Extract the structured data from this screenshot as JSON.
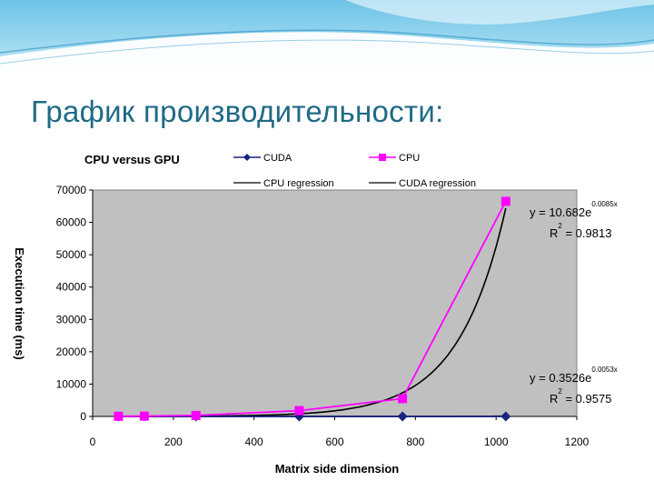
{
  "slide": {
    "title": "График производительности:"
  },
  "chart_data": {
    "type": "line",
    "title": "CPU versus GPU",
    "xlabel": "Matrix side dimension",
    "ylabel": "Execution time (ms)",
    "xlim": [
      0,
      1200
    ],
    "ylim": [
      0,
      70000
    ],
    "x_ticks": [
      "0",
      "200",
      "400",
      "600",
      "800",
      "1000",
      "1200"
    ],
    "y_ticks": [
      "0",
      "10000",
      "20000",
      "30000",
      "40000",
      "50000",
      "60000",
      "70000"
    ],
    "grid": false,
    "plot_background": "#c0c0c0",
    "series": [
      {
        "name": "CUDA",
        "color": "#1a237e",
        "marker": "diamond",
        "x": [
          64,
          128,
          256,
          512,
          768,
          1024
        ],
        "y": [
          0,
          0,
          0,
          0,
          0,
          0
        ]
      },
      {
        "name": "CPU",
        "color": "#ff00ff",
        "marker": "square",
        "x": [
          64,
          128,
          256,
          512,
          768,
          1024
        ],
        "y": [
          50,
          100,
          300,
          1800,
          5500,
          66500
        ]
      }
    ],
    "regression": [
      {
        "name": "CPU regression",
        "color": "#000000",
        "a": 10.682,
        "b": 0.0085
      },
      {
        "name": "CUDA regression",
        "color": "#000000",
        "a": 0.3526,
        "b": 0.0053
      }
    ],
    "annotations": [
      {
        "eq": "y = 10.682e",
        "exp": "0.0085x",
        "r_base": "R",
        "r_sup": "2",
        "r_val": " = 0.9813"
      },
      {
        "eq": "y = 0.3526e",
        "exp": "0.0053x",
        "r_base": "R",
        "r_sup": "2",
        "r_val": " = 0.9575"
      }
    ],
    "legend_position": "top"
  }
}
